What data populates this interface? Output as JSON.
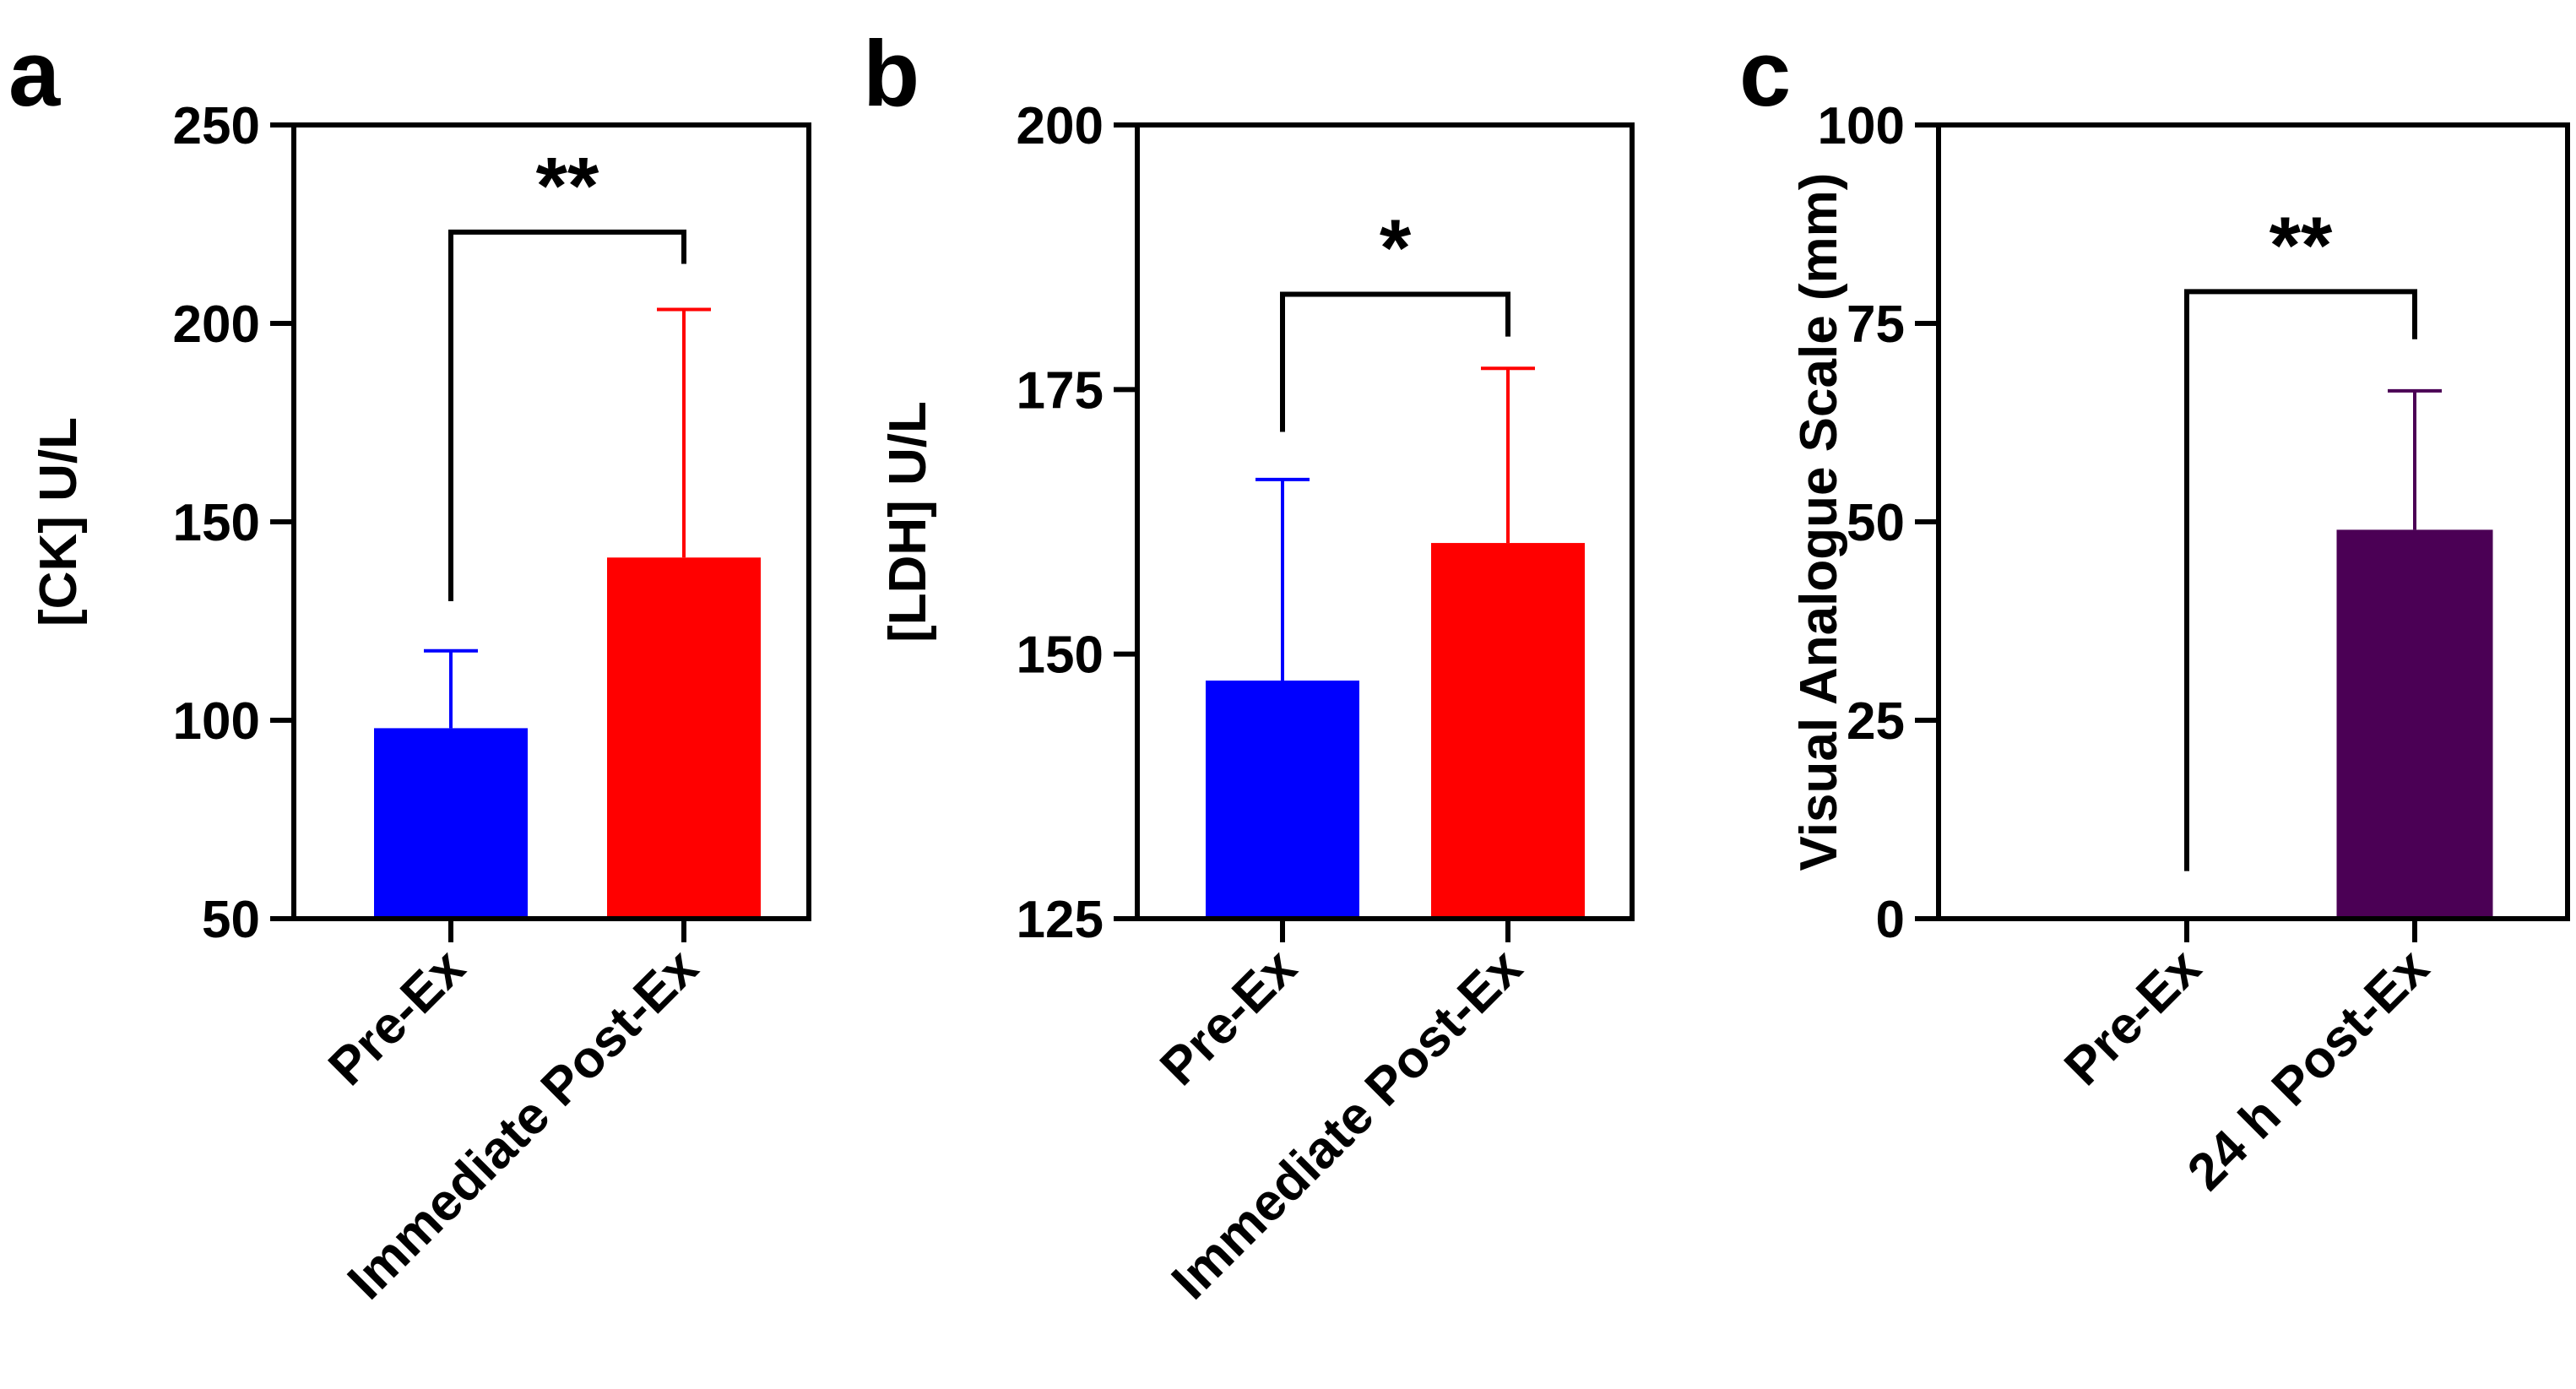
{
  "chart_data": [
    {
      "panel_label": "a",
      "type": "bar",
      "categories": [
        "Pre-Ex",
        "Immediate Post-Ex"
      ],
      "values": [
        98,
        141
      ],
      "error_upper": [
        117.5,
        203.5
      ],
      "colors": [
        "#0000ff",
        "#ff0000"
      ],
      "title": "",
      "xlabel": "",
      "ylabel": "[CK] U/L",
      "ylim": [
        50,
        250
      ],
      "yticks": [
        50,
        100,
        150,
        200,
        250
      ],
      "significance": {
        "label": "**",
        "left_y": 130,
        "right_y": 215,
        "top_y": 223
      }
    },
    {
      "panel_label": "b",
      "type": "bar",
      "categories": [
        "Pre-Ex",
        "Immediate Post-Ex"
      ],
      "values": [
        147.5,
        160.5
      ],
      "error_upper": [
        166.5,
        177
      ],
      "colors": [
        "#0000ff",
        "#ff0000"
      ],
      "title": "",
      "xlabel": "",
      "ylabel": "[LDH] U/L",
      "ylim": [
        125,
        200
      ],
      "yticks": [
        125,
        150,
        175,
        200
      ],
      "significance": {
        "label": "*",
        "left_y": 171,
        "right_y": 180,
        "top_y": 184
      }
    },
    {
      "panel_label": "c",
      "type": "bar",
      "categories": [
        "Pre-Ex",
        "24 h Post-Ex"
      ],
      "values": [
        0,
        49
      ],
      "error_upper": [
        0,
        66.5
      ],
      "colors": [
        "#000000",
        "#4b0055"
      ],
      "title": "",
      "xlabel": "",
      "ylabel": "Visual Analogue Scale (mm)",
      "ylim": [
        0,
        100
      ],
      "yticks": [
        0,
        25,
        50,
        75,
        100
      ],
      "significance": {
        "label": "**",
        "left_y": 6,
        "right_y": 73,
        "top_y": 79
      }
    }
  ]
}
